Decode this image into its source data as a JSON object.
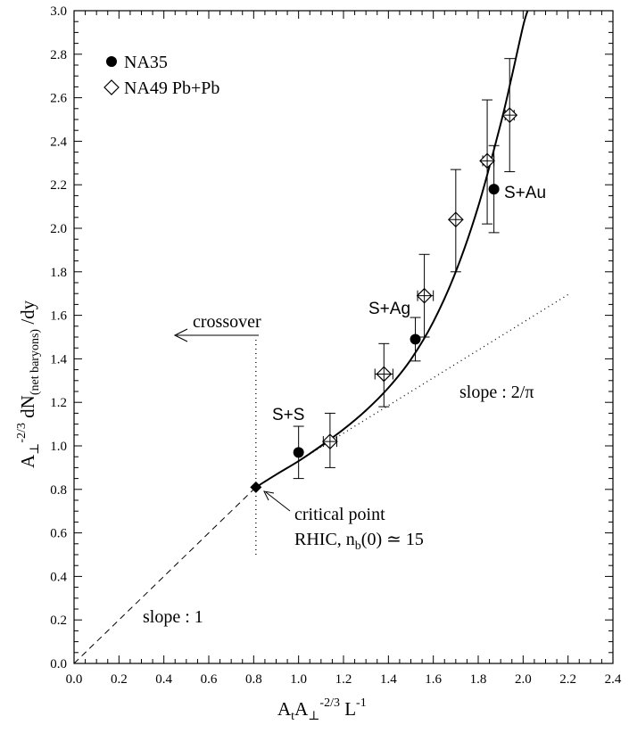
{
  "chart_data": {
    "type": "scatter",
    "xlabel": {
      "A": "A",
      "sub_t": "t",
      "A2": "A",
      "sub_perp": "⊥",
      "sup": "-2/3",
      "L": " L",
      "sup2": "-1"
    },
    "ylabel": {
      "A": "A",
      "sub_perp": "⊥",
      "sup": "-2/3",
      "dN": " dN",
      "sub": "(net baryons)",
      "dy": " /dy"
    },
    "xlim": [
      0.0,
      2.4
    ],
    "ylim": [
      0.0,
      3.0
    ],
    "x_ticks": [
      "0.0",
      "0.2",
      "0.4",
      "0.6",
      "0.8",
      "1.0",
      "1.2",
      "1.4",
      "1.6",
      "1.8",
      "2.0",
      "2.2",
      "2.4"
    ],
    "y_ticks": [
      "0.0",
      "0.2",
      "0.4",
      "0.6",
      "0.8",
      "1.0",
      "1.2",
      "1.4",
      "1.6",
      "1.8",
      "2.0",
      "2.2",
      "2.4",
      "2.6",
      "2.8",
      "3.0"
    ],
    "grid": false,
    "legend_placement": "top-left",
    "legend": [
      {
        "name": "NA35",
        "marker": "filled-circle"
      },
      {
        "name": "NA49 Pb+Pb",
        "marker": "open-diamond"
      }
    ],
    "series": [
      {
        "name": "NA35",
        "points": [
          {
            "x": 1.0,
            "y": 0.97,
            "yerr": [
              0.85,
              1.09
            ]
          },
          {
            "x": 1.52,
            "y": 1.49,
            "yerr": [
              1.39,
              1.59
            ]
          },
          {
            "x": 1.87,
            "y": 2.18,
            "yerr": [
              1.98,
              2.38
            ]
          }
        ]
      },
      {
        "name": "NA49 Pb+Pb",
        "points": [
          {
            "x": 1.14,
            "y": 1.02,
            "xerr": [
              1.11,
              1.17
            ],
            "yerr": [
              0.9,
              1.15
            ]
          },
          {
            "x": 1.38,
            "y": 1.33,
            "xerr": [
              1.34,
              1.42
            ],
            "yerr": [
              1.18,
              1.47
            ]
          },
          {
            "x": 1.56,
            "y": 1.69,
            "xerr": [
              1.53,
              1.6
            ],
            "yerr": [
              1.5,
              1.88
            ]
          },
          {
            "x": 1.7,
            "y": 2.04,
            "yerr": [
              1.8,
              2.27
            ]
          },
          {
            "x": 1.84,
            "y": 2.31,
            "xerr": [
              1.82,
              1.87
            ],
            "yerr": [
              2.02,
              2.59
            ]
          },
          {
            "x": 1.94,
            "y": 2.52,
            "xerr": [
              1.92,
              1.96
            ],
            "yerr": [
              2.26,
              2.78
            ]
          }
        ]
      }
    ],
    "lines": {
      "slope1_dashed": {
        "from": [
          0.0,
          0.0
        ],
        "to": [
          0.81,
          0.81
        ]
      },
      "slope2pi_dotted": {
        "from": [
          0.81,
          0.81
        ],
        "to": [
          2.2,
          1.695
        ]
      },
      "vertical_dotted": {
        "x": 0.81,
        "y_from": 0.5,
        "y_to": 1.5
      },
      "fit_curve": [
        [
          0.81,
          0.81
        ],
        [
          0.9,
          0.868
        ],
        [
          1.0,
          0.93
        ],
        [
          1.1,
          1.0
        ],
        [
          1.2,
          1.076
        ],
        [
          1.3,
          1.163
        ],
        [
          1.4,
          1.267
        ],
        [
          1.5,
          1.397
        ],
        [
          1.6,
          1.57
        ],
        [
          1.7,
          1.8
        ],
        [
          1.8,
          2.1
        ],
        [
          1.9,
          2.48
        ],
        [
          1.95,
          2.7
        ],
        [
          2.0,
          2.93
        ],
        [
          2.02,
          3.0
        ]
      ]
    },
    "critical_point": {
      "x": 0.81,
      "y": 0.81
    },
    "annotations": {
      "crossover": "crossover",
      "slope1": "slope : 1",
      "slope2pi": "slope : 2/π",
      "critical_line1": "critical point",
      "critical_line2_a": "RHIC, n",
      "critical_line2_sub": "b",
      "critical_line2_b": "(0) ≃ 15",
      "ss": "S+S",
      "sag": "S+Ag",
      "sau": "S+Au"
    }
  }
}
